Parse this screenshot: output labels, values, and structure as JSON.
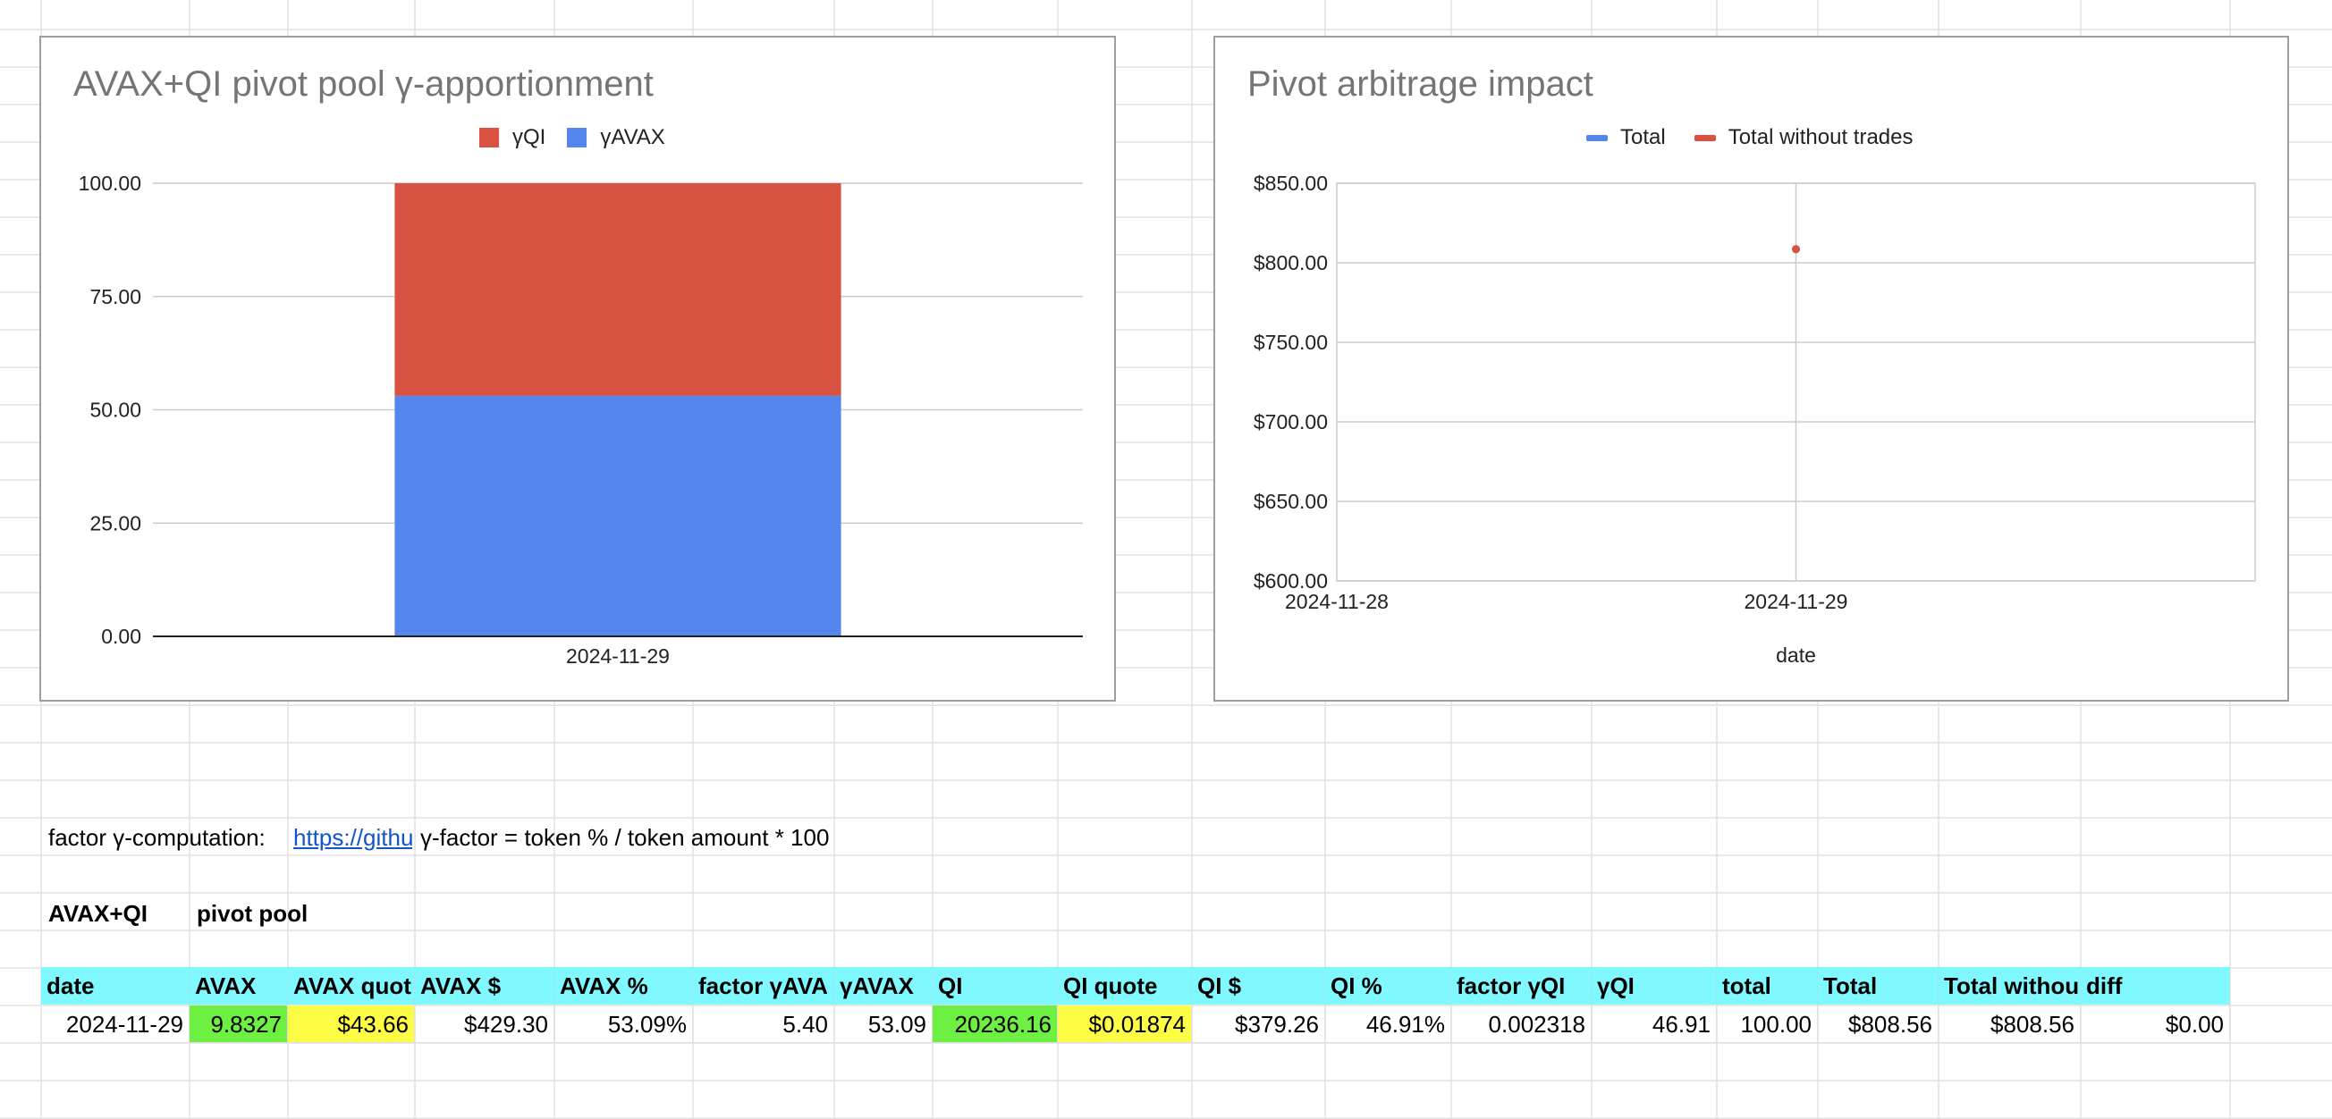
{
  "sheet": {
    "factor_label": "factor γ-computation:",
    "link_text": "https://githu",
    "formula_text": "γ-factor = token % / token amount * 100",
    "pool_name": "AVAX+QI",
    "pool_type": "pivot pool",
    "columns": [
      "date",
      "AVAX",
      "AVAX quot",
      "AVAX $",
      "AVAX %",
      "factor γAVA",
      "γAVAX",
      "QI",
      "QI quote",
      "QI $",
      "QI %",
      "factor γQI",
      "γQI",
      "total",
      "Total",
      "Total withou",
      "diff"
    ],
    "rows": [
      [
        "2024-11-29",
        "9.8327",
        "$43.66",
        "$429.30",
        "53.09%",
        "5.40",
        "53.09",
        "20236.16",
        "$0.01874",
        "$379.26",
        "46.91%",
        "0.002318",
        "46.91",
        "100.00",
        "$808.56",
        "$808.56",
        "$0.00"
      ]
    ],
    "colors": {
      "header_bg": "#7ff9ff",
      "green_cell": "#6ef043",
      "yellow_cell": "#fdfd45"
    }
  },
  "chart_data": [
    {
      "type": "bar",
      "stacked": true,
      "title": "AVAX+QI pivot pool γ-apportionment",
      "categories": [
        "2024-11-29"
      ],
      "series": [
        {
          "name": "γQI",
          "values": [
            46.91
          ],
          "color": "#d95140"
        },
        {
          "name": "γAVAX",
          "values": [
            53.09
          ],
          "color": "#5486ed"
        }
      ],
      "ylim": [
        0,
        100
      ],
      "yticks": [
        "100.00",
        "75.00",
        "50.00",
        "25.00",
        "0.00"
      ],
      "ytick_values": [
        100,
        75,
        50,
        25,
        0
      ],
      "legend": "top",
      "grid": true
    },
    {
      "type": "line",
      "title": "Pivot arbitrage impact",
      "xlabel": "date",
      "x": [
        "2024-11-29"
      ],
      "xticks": [
        "2024-11-28",
        "2024-11-29"
      ],
      "series": [
        {
          "name": "Total",
          "values": [
            808.56
          ],
          "color": "#5486ed"
        },
        {
          "name": "Total without trades",
          "values": [
            808.56
          ],
          "color": "#d95140"
        }
      ],
      "ylim": [
        600,
        850
      ],
      "yticks": [
        "$850.00",
        "$800.00",
        "$750.00",
        "$700.00",
        "$650.00",
        "$600.00"
      ],
      "ytick_values": [
        850,
        800,
        750,
        700,
        650,
        600
      ],
      "legend": "top",
      "grid": true
    }
  ]
}
